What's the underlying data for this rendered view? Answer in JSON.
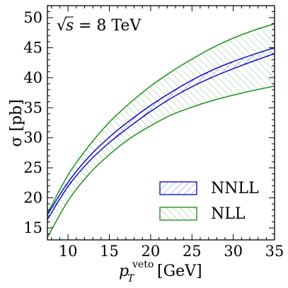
{
  "chart_data": {
    "type": "area",
    "title": "",
    "annotation": {
      "sqrt_symbol": "√",
      "variable": "s",
      "rest": " = 8 TeV"
    },
    "xlabel": {
      "main": "p",
      "subscript": "T",
      "superscript": "veto",
      "unit": " [GeV]"
    },
    "ylabel": "σ [pb]",
    "xlim": [
      7.5,
      35
    ],
    "ylim": [
      13,
      52
    ],
    "xticks": [
      10,
      15,
      20,
      25,
      30,
      35
    ],
    "yticks": [
      15,
      20,
      25,
      30,
      35,
      40,
      45,
      50
    ],
    "x": [
      7.5,
      10,
      12.5,
      15,
      17.5,
      20,
      22.5,
      25,
      27.5,
      30,
      32.5,
      35
    ],
    "series": [
      {
        "name": "NNLL",
        "color": "#0000cc",
        "hatch": "/",
        "upper": [
          17.2,
          22.6,
          26.8,
          30.1,
          32.9,
          35.4,
          37.6,
          39.6,
          41.3,
          42.7,
          43.9,
          45.0
        ],
        "lower": [
          16.4,
          21.9,
          26.0,
          29.2,
          31.9,
          34.4,
          36.6,
          38.5,
          40.1,
          41.5,
          42.8,
          44.0
        ]
      },
      {
        "name": "NLL",
        "color": "#118811",
        "hatch": "\\",
        "upper": [
          17.4,
          23.8,
          28.6,
          32.6,
          35.8,
          38.6,
          41.0,
          43.1,
          45.0,
          46.6,
          47.9,
          49.0
        ],
        "lower": [
          13.4,
          19.5,
          23.9,
          27.2,
          29.9,
          32.0,
          33.8,
          35.1,
          36.2,
          37.1,
          37.9,
          38.6
        ]
      }
    ],
    "legend_location": "bottom-right"
  }
}
